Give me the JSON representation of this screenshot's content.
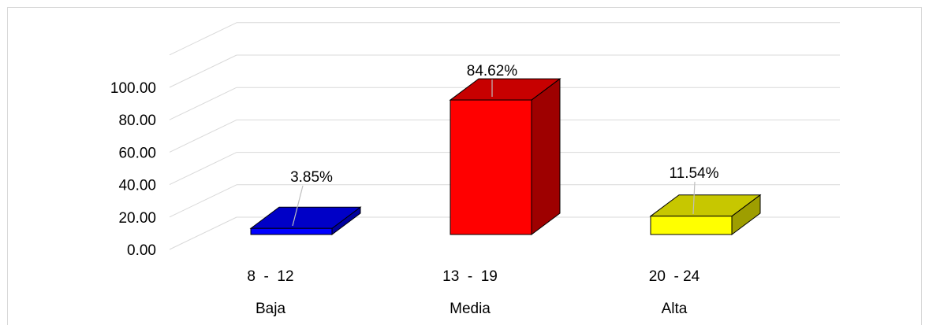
{
  "chart_data": {
    "type": "bar",
    "title": "",
    "xlabel": "",
    "ylabel": "",
    "ylim": [
      0,
      100
    ],
    "y_ticks": [
      "0.00",
      "20.00",
      "40.00",
      "60.00",
      "80.00",
      "100.00"
    ],
    "categories": [
      "8  -  12",
      "13  -  19",
      "20  - 24"
    ],
    "category_groups": [
      "Baja",
      "Media",
      "Alta"
    ],
    "values": [
      3.85,
      84.62,
      11.54
    ],
    "data_labels": [
      "3.85%",
      "84.62%",
      "11.54%"
    ],
    "colors": [
      "#0000ff",
      "#ff0000",
      "#ffff00"
    ],
    "grid": true,
    "style": "3d-column"
  }
}
